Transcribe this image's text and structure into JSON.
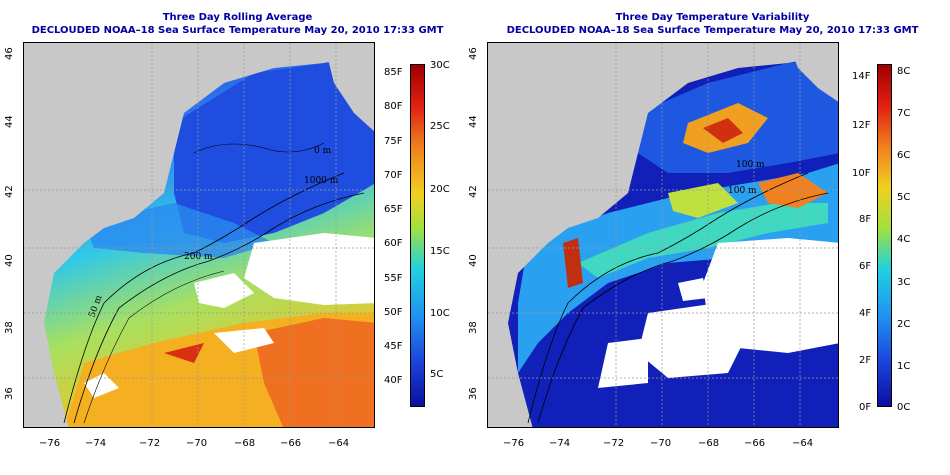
{
  "panels": [
    {
      "title_line1": "Three Day Rolling Average",
      "title_line2": "DECLOUDED NOAA–18 Sea Surface Temperature May 20, 2010 17:33 GMT",
      "x_ticks": [
        "−76",
        "−74",
        "−72",
        "−70",
        "−68",
        "−66",
        "−64"
      ],
      "y_ticks": [
        "36",
        "38",
        "40",
        "42",
        "44",
        "46"
      ],
      "contour_labels": [
        "200 m",
        "50 m",
        "1000 m",
        "0 m"
      ],
      "colorbar_left": [
        "85F",
        "80F",
        "75F",
        "70F",
        "65F",
        "60F",
        "55F",
        "50F",
        "45F",
        "40F"
      ],
      "colorbar_right": [
        "30C",
        "25C",
        "20C",
        "15C",
        "10C",
        "5C"
      ]
    },
    {
      "title_line1": "Three Day Temperature Variability",
      "title_line2": "DECLOUDED NOAA–18 Sea Surface Temperature May 20, 2010 17:33 GMT",
      "x_ticks": [
        "−76",
        "−74",
        "−72",
        "−70",
        "−68",
        "−66",
        "−64"
      ],
      "y_ticks": [
        "36",
        "38",
        "40",
        "42",
        "44",
        "46"
      ],
      "contour_labels": [
        "100 m",
        "100 m"
      ],
      "colorbar_left": [
        "14F",
        "12F",
        "10F",
        "8F",
        "6F",
        "4F",
        "2F",
        "0F"
      ],
      "colorbar_right": [
        "8C",
        "7C",
        "6C",
        "5C",
        "4C",
        "3C",
        "2C",
        "1C",
        "0C"
      ]
    }
  ],
  "colors": {
    "land": "#c8c8c8",
    "cloud": "#ffffff",
    "title": "#0000a0",
    "cold": "#1a2fd0",
    "cool": "#2a8cf0",
    "mild": "#20d0e0",
    "warm": "#f0e020",
    "hot": "#f08020",
    "hottest": "#d01010"
  }
}
